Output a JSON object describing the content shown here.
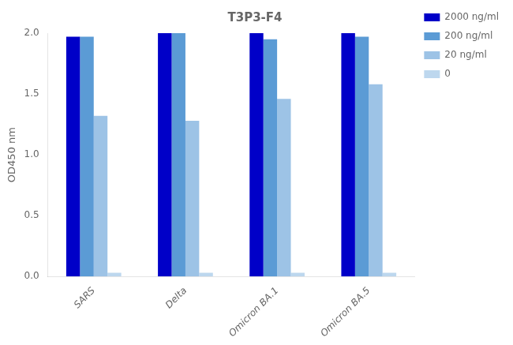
{
  "chart_data": {
    "type": "bar",
    "title": "T3P3-F4",
    "ylabel": "OD450 nm",
    "categories": [
      "SARS",
      "Delta",
      "Omicron BA.1",
      "Omicron BA.5"
    ],
    "series": [
      {
        "name": "2000 ng/ml",
        "color": "#0000C8",
        "values": [
          1.97,
          2.0,
          2.0,
          2.0
        ]
      },
      {
        "name": "200 ng/ml",
        "color": "#5B9BD5",
        "values": [
          1.97,
          2.0,
          1.95,
          1.97
        ]
      },
      {
        "name": "20 ng/ml",
        "color": "#9DC3E6",
        "values": [
          1.32,
          1.28,
          1.46,
          1.58
        ]
      },
      {
        "name": "0",
        "color": "#BDD7EE",
        "values": [
          0.03,
          0.03,
          0.03,
          0.03
        ]
      }
    ],
    "ylim": [
      0.0,
      2.0
    ],
    "yticks": [
      {
        "value": 0.0,
        "label": "0.0"
      },
      0.5,
      {
        "value": 1.0,
        "label": "1.0"
      },
      1.5,
      {
        "value": 2.0,
        "label": "2.0"
      }
    ],
    "grid": false,
    "legend": "right"
  }
}
